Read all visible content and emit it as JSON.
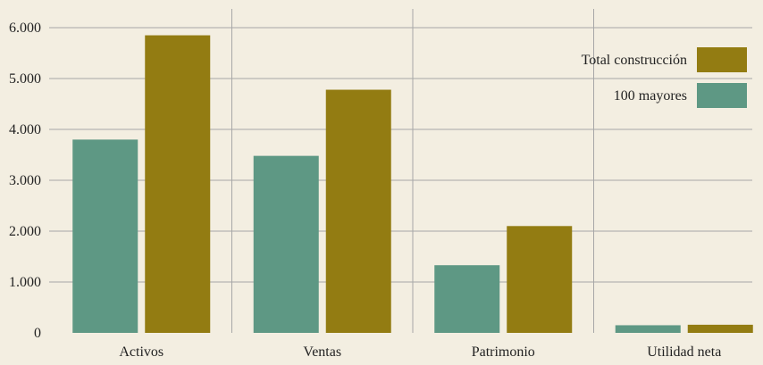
{
  "chart_data": {
    "type": "bar",
    "categories": [
      "Activos",
      "Ventas",
      "Patrimonio",
      "Utilidad neta"
    ],
    "series": [
      {
        "name": "100 mayores",
        "values": [
          3800,
          3480,
          1330,
          150
        ]
      },
      {
        "name": "Total construcción",
        "values": [
          5850,
          4780,
          2100,
          160
        ]
      }
    ],
    "ylim": [
      0,
      6000
    ],
    "yticks": [
      0,
      1000,
      2000,
      3000,
      4000,
      5000,
      6000
    ],
    "ytick_labels": [
      "0",
      "1.000",
      "2.000",
      "3.000",
      "4.000",
      "5.000",
      "6.000"
    ],
    "grid": true,
    "legend": {
      "placement": "top-right",
      "entries": [
        "Total construcción",
        "100 mayores"
      ]
    }
  },
  "colors": {
    "background": "#F3EEE1",
    "series_100_mayores": "#5E9884",
    "series_total_construccion": "#937C12",
    "gridline": "#A7A7A7"
  }
}
